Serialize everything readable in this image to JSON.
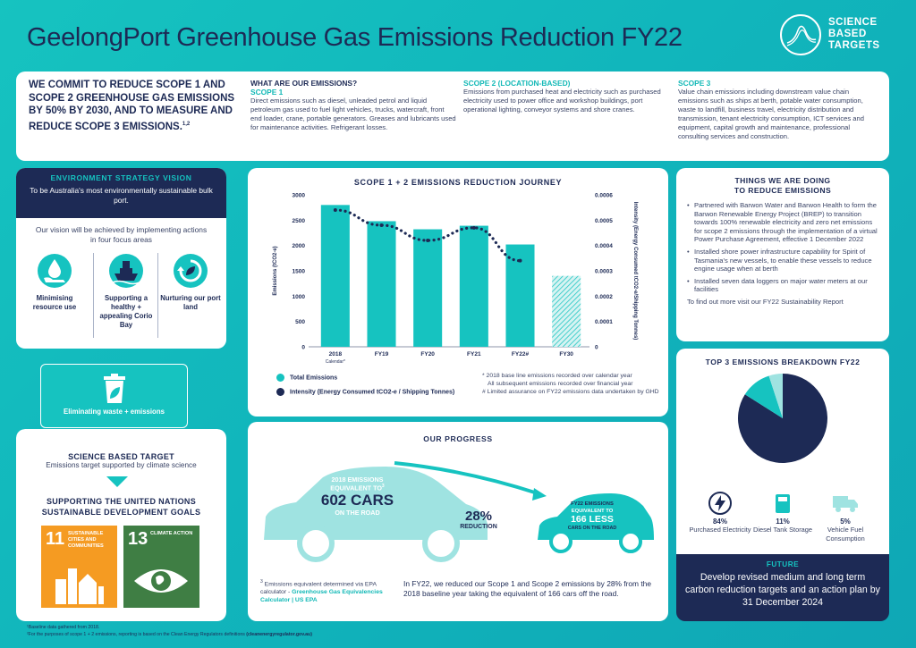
{
  "title": "GeelongPort Greenhouse Gas Emissions Reduction FY22",
  "logo": {
    "line1": "SCIENCE",
    "line2": "BASED",
    "line3": "TARGETS",
    "icon": "sbt-wave-icon"
  },
  "commitment": {
    "text": "WE COMMIT TO REDUCE SCOPE 1 AND SCOPE 2 GREENHOUSE GAS EMISSIONS BY 50% BY 2030, AND TO MEASURE AND REDUCE SCOPE 3 EMISSIONS.",
    "sup": "1,2"
  },
  "emissions": {
    "heading": "WHAT ARE OUR EMISSIONS?",
    "scope1": {
      "title": "SCOPE 1",
      "text": "Direct emissions such as diesel, unleaded petrol and liquid petroleum gas used to fuel light vehicles, trucks, watercraft, front end loader, crane, portable generators. Greases and lubricants used for maintenance activities. Refrigerant losses."
    },
    "scope2": {
      "title": "SCOPE 2 (LOCATION-BASED)",
      "text": "Emissions from purchased heat and electricity such as purchased electricity used to power office and workshop buildings, port operational lighting, conveyor systems and shore cranes."
    },
    "scope3": {
      "title": "SCOPE 3",
      "text": "Value chain emissions including downstream value chain emissions such as ships at berth, potable water consumption, waste to landfill, business travel, electricity distribution and transmission, tenant electricity consumption, ICT services and equipment, capital growth and maintenance, professional consulting services and construction."
    }
  },
  "env": {
    "heading": "ENVIRONMENT STRATEGY VISION",
    "text": "To be Australia's most environmentally sustainable bulk port.",
    "vision": "Our vision will be achieved by implementing actions in four focus areas",
    "focus": [
      {
        "label": "Minimising resource use",
        "icon": "water-drop-hand-icon"
      },
      {
        "label": "Supporting a healthy + appealing Corio Bay",
        "icon": "ship-icon"
      },
      {
        "label": "Nurturing our port land",
        "icon": "recycle-leaf-icon"
      }
    ],
    "waste": {
      "label": "Eliminating waste + emissions",
      "icon": "bin-leaf-icon"
    }
  },
  "sbt_section": {
    "heading": "SCIENCE BASED TARGET",
    "text": "Emissions target supported by climate science"
  },
  "sdg": {
    "heading": "SUPPORTING THE UNITED NATIONS SUSTAINABLE DEVELOPMENT GOALS",
    "goals": [
      {
        "num": "11",
        "label": "SUSTAINABLE CITIES AND COMMUNITIES",
        "color": "#f59b22",
        "icon": "city-icon"
      },
      {
        "num": "13",
        "label": "CLIMATE ACTION",
        "color": "#3f7e44",
        "icon": "eye-globe-icon"
      }
    ]
  },
  "chart": {
    "heading": "SCOPE 1 + 2 EMISSIONS REDUCTION JOURNEY",
    "legend_total": "Total Emissions",
    "legend_intensity": "Intensity (Energy Consumed tCO2-e / Shipping Tonnes)",
    "notes": [
      "* 2018 base line emissions recorded over calendar year",
      "All subsequent emissions recorded over financial year",
      "# Limited assurance on FY22 emissions data undertaken by GHD"
    ],
    "calendar_note": "Calendar*"
  },
  "chart_data": {
    "type": "bar",
    "categories": [
      "2018",
      "FY19",
      "FY20",
      "FY21",
      "FY22#",
      "FY30"
    ],
    "series": [
      {
        "name": "Total Emissions",
        "values": [
          2800,
          2480,
          2320,
          2390,
          2020,
          1400
        ],
        "color": "#16c3c0"
      },
      {
        "name": "Intensity (Energy Consumed tCO2-e / Shipping Tonnes)",
        "values": [
          0.00054,
          0.00048,
          0.00042,
          0.00047,
          0.00034,
          null
        ],
        "type": "line",
        "axis": "right"
      }
    ],
    "ylabel": "Emissions (tCO2-e)",
    "y2label": "Intensity (Energy Consumed tCO2-e/Shipping Tonnes)",
    "ylim": [
      0,
      3000
    ],
    "y2lim": [
      0,
      0.0006
    ],
    "yticks": [
      "0",
      "500",
      "1000",
      "1500",
      "2000",
      "2500",
      "3000"
    ],
    "y2ticks": [
      "0",
      "0.0001",
      "0.0002",
      "0.0003",
      "0.0004",
      "0.0005",
      "0.0006"
    ],
    "target_category": "FY30"
  },
  "progress": {
    "heading": "OUR PROGRESS",
    "car2018": {
      "l1": "2018 EMISSIONS",
      "l2": "EQUIVALENT TO",
      "big": "602 CARS",
      "l3": "ON THE ROAD",
      "sup": "3"
    },
    "reduction": {
      "pct": "28%",
      "label": "REDUCTION"
    },
    "car2022": {
      "l1": "FY22 EMISSIONS",
      "l2": "EQUIVALENT TO",
      "big": "166 LESS",
      "l3": "CARS ON THE ROAD"
    },
    "footnote_pre": "Emissions equivalent determined via EPA calculator - ",
    "footnote_link": "Greenhouse Gas Equivalencies Calculator | US EPA",
    "footnote_num": "3",
    "summary": "In FY22, we reduced our Scope 1 and Scope 2 emissions by 28% from the 2018 baseline year taking the equivalent of 166 cars off the road."
  },
  "things": {
    "heading1": "THINGS WE ARE DOING",
    "heading2": "TO REDUCE EMISSIONS",
    "items": [
      "Partnered with Barwon Water and Barwon Health to form the Barwon Renewable Energy Project (BREP) to transition towards 100% renewable electricity and zero net emissions for scope 2 emissions through the implementation of a virtual Power Purchase Agreement, effective 1 December 2022",
      "Installed shore power infrastructure capability for Spirit of Tasmania's new vessels, to enable these vessels to reduce engine usage when at berth",
      "Installed seven data loggers on major water meters at our facilities"
    ],
    "more": "To find out more visit our FY22 Sustainability Report"
  },
  "top3": {
    "heading": "TOP 3 EMISSIONS BREAKDOWN FY22",
    "items": [
      {
        "pct": "84%",
        "label": "Purchased Electricity",
        "icon": "lightning-icon"
      },
      {
        "pct": "11%",
        "label": "Diesel Tank Storage",
        "icon": "fuel-tank-icon"
      },
      {
        "pct": "5%",
        "label": "Vehicle Fuel Consumption",
        "icon": "truck-icon"
      }
    ]
  },
  "pie_data": {
    "type": "pie",
    "labels": [
      "Purchased Electricity",
      "Diesel Tank Storage",
      "Vehicle Fuel Consumption"
    ],
    "values": [
      84,
      11,
      5
    ],
    "colors": [
      "#1d2a55",
      "#16c3c0",
      "#9fe3e1"
    ]
  },
  "future": {
    "heading": "FUTURE",
    "text": "Develop revised medium and long term carbon reduction targets and an action plan by 31 December 2024"
  },
  "footer": {
    "line1": "¹Baseline data gathered from 2018.",
    "line2_pre": "²For the purposes of scope 1 + 2 emissions, reporting is based on the Clean Energy Regulators definitions ",
    "line2_link": "(cleanenergyregulator.gov.au)"
  }
}
